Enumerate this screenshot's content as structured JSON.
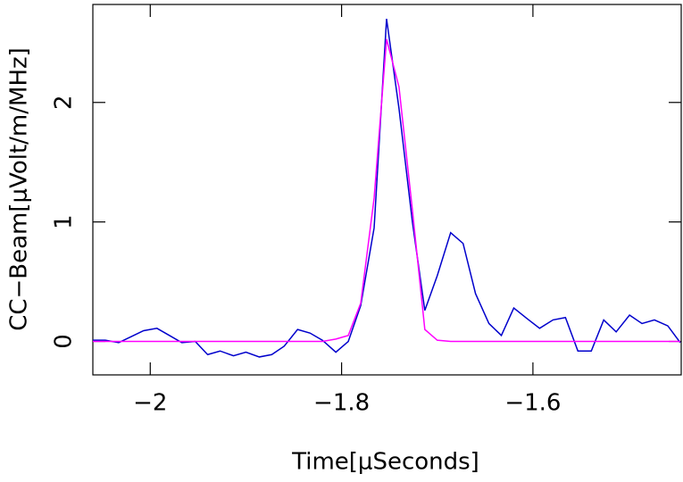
{
  "chart_data": {
    "type": "line",
    "x_label": "Time[μSeconds]",
    "y_label": "CC−Beam[μVolt/m/MHz]",
    "x": [
      -2.06,
      -2.047,
      -2.033,
      -2.02,
      -2.007,
      -1.993,
      -1.98,
      -1.967,
      -1.953,
      -1.94,
      -1.927,
      -1.913,
      -1.9,
      -1.886,
      -1.873,
      -1.86,
      -1.846,
      -1.833,
      -1.82,
      -1.806,
      -1.793,
      -1.78,
      -1.766,
      -1.753,
      -1.74,
      -1.726,
      -1.713,
      -1.7,
      -1.686,
      -1.673,
      -1.66,
      -1.646,
      -1.633,
      -1.62,
      -1.606,
      -1.593,
      -1.579,
      -1.566,
      -1.553,
      -1.539,
      -1.526,
      -1.513,
      -1.499,
      -1.486,
      -1.473,
      -1.459,
      -1.446
    ],
    "series": [
      {
        "color": "#0000cc",
        "values": [
          0.01,
          0.01,
          -0.01,
          0.04,
          0.09,
          0.11,
          0.05,
          -0.01,
          0.0,
          -0.11,
          -0.08,
          -0.12,
          -0.09,
          -0.13,
          -0.11,
          -0.04,
          0.1,
          0.07,
          0.01,
          -0.09,
          0.0,
          0.3,
          0.95,
          2.7,
          1.95,
          1.0,
          0.26,
          0.55,
          0.91,
          0.82,
          0.4,
          0.15,
          0.05,
          0.28,
          0.19,
          0.11,
          0.18,
          0.2,
          -0.08,
          -0.08,
          0.18,
          0.08,
          0.22,
          0.15,
          0.18,
          0.13,
          -0.01
        ]
      },
      {
        "color": "#ff00ff",
        "values": [
          0,
          0,
          0,
          0,
          0,
          0,
          0,
          0,
          0,
          0,
          0,
          0,
          0,
          0,
          0,
          0,
          0,
          0,
          0,
          0.02,
          0.05,
          0.32,
          1.2,
          2.53,
          2.13,
          1.1,
          0.1,
          0.01,
          0,
          0,
          0,
          0,
          0,
          0,
          0,
          0,
          0,
          0,
          0,
          0,
          0,
          0,
          0,
          0,
          0,
          0,
          0
        ]
      }
    ],
    "xlim": [
      -2.06,
      -1.445
    ],
    "ylim": [
      -0.28,
      2.82
    ],
    "xticks": [
      {
        "value": -2,
        "label": "−2"
      },
      {
        "value": -1.8,
        "label": "−1.8"
      },
      {
        "value": -1.6,
        "label": "−1.6"
      }
    ],
    "yticks": [
      0,
      1,
      2
    ]
  }
}
